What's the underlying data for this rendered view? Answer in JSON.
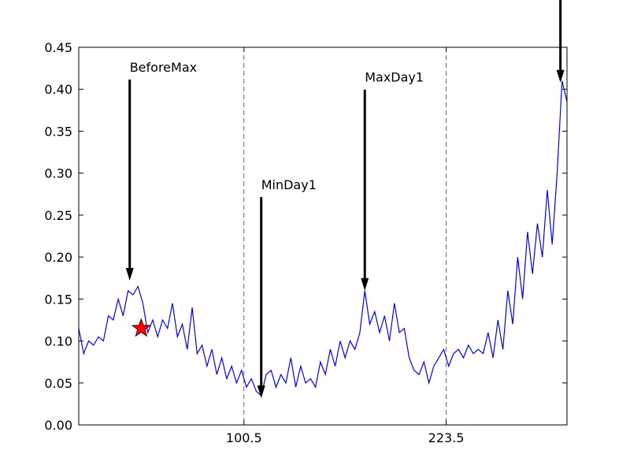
{
  "chart_data": {
    "type": "line",
    "x": [
      0,
      3,
      6,
      9,
      12,
      15,
      18,
      21,
      24,
      27,
      30,
      33,
      36,
      39,
      42,
      45,
      48,
      51,
      54,
      57,
      60,
      63,
      66,
      69,
      72,
      75,
      78,
      81,
      84,
      87,
      90,
      93,
      96,
      99,
      102,
      105,
      108,
      111,
      114,
      117,
      120,
      123,
      126,
      129,
      132,
      135,
      138,
      141,
      144,
      147,
      150,
      153,
      156,
      159,
      162,
      165,
      168,
      171,
      174,
      177,
      180,
      183,
      186,
      189,
      192,
      195,
      198,
      201,
      204,
      207,
      210,
      213,
      216,
      219,
      222,
      225,
      228,
      231,
      234,
      237,
      240,
      243,
      246,
      249,
      252,
      255,
      258,
      261,
      264,
      267,
      270,
      273,
      276,
      279,
      282,
      285,
      288,
      291,
      294,
      297
    ],
    "series": [
      {
        "color": "#0000ff",
        "values": [
          0.115,
          0.085,
          0.1,
          0.095,
          0.105,
          0.1,
          0.13,
          0.125,
          0.15,
          0.13,
          0.16,
          0.155,
          0.165,
          0.145,
          0.11,
          0.125,
          0.105,
          0.125,
          0.115,
          0.145,
          0.105,
          0.12,
          0.09,
          0.14,
          0.085,
          0.095,
          0.07,
          0.09,
          0.06,
          0.08,
          0.055,
          0.07,
          0.05,
          0.065,
          0.045,
          0.055,
          0.04,
          0.035,
          0.06,
          0.065,
          0.045,
          0.06,
          0.05,
          0.08,
          0.045,
          0.07,
          0.05,
          0.055,
          0.045,
          0.075,
          0.06,
          0.09,
          0.07,
          0.1,
          0.08,
          0.1,
          0.09,
          0.11,
          0.16,
          0.12,
          0.135,
          0.11,
          0.13,
          0.1,
          0.145,
          0.11,
          0.115,
          0.08,
          0.065,
          0.06,
          0.075,
          0.05,
          0.07,
          0.08,
          0.09,
          0.07,
          0.085,
          0.09,
          0.08,
          0.095,
          0.085,
          0.09,
          0.085,
          0.11,
          0.08,
          0.125,
          0.09,
          0.16,
          0.12,
          0.2,
          0.15,
          0.23,
          0.18,
          0.24,
          0.2,
          0.28,
          0.215,
          0.3,
          0.41,
          0.385
        ]
      }
    ],
    "xlim": [
      0,
      297
    ],
    "ylim": [
      0,
      0.45
    ],
    "xticks": [
      100.5,
      223.5
    ],
    "yticks": [
      {
        "value": 0,
        "label": "0.00"
      },
      {
        "value": 0.05,
        "label": "0.05"
      },
      {
        "value": 0.1,
        "label": "0.10"
      },
      {
        "value": 0.15,
        "label": "0.15"
      },
      {
        "value": 0.2,
        "label": "0.20"
      },
      {
        "value": 0.25,
        "label": "0.25"
      },
      {
        "value": 0.3,
        "label": "0.30"
      },
      {
        "value": 0.35,
        "label": "0.35"
      },
      {
        "value": 0.4,
        "label": "0.40"
      },
      {
        "value": 0.45,
        "label": "0.45"
      }
    ],
    "x_grid": true,
    "annotations": [
      {
        "text": "BeforeMax",
        "x": 31,
        "y": 0.172
      },
      {
        "text": "MinDay1",
        "x": 111,
        "y": 0.032
      },
      {
        "text": "MaxDay1",
        "x": 174,
        "y": 0.16
      },
      {
        "x": 293,
        "y": 0.408
      }
    ],
    "marker": {
      "x": 38,
      "y": 0.115,
      "color": "#ff0000"
    }
  }
}
